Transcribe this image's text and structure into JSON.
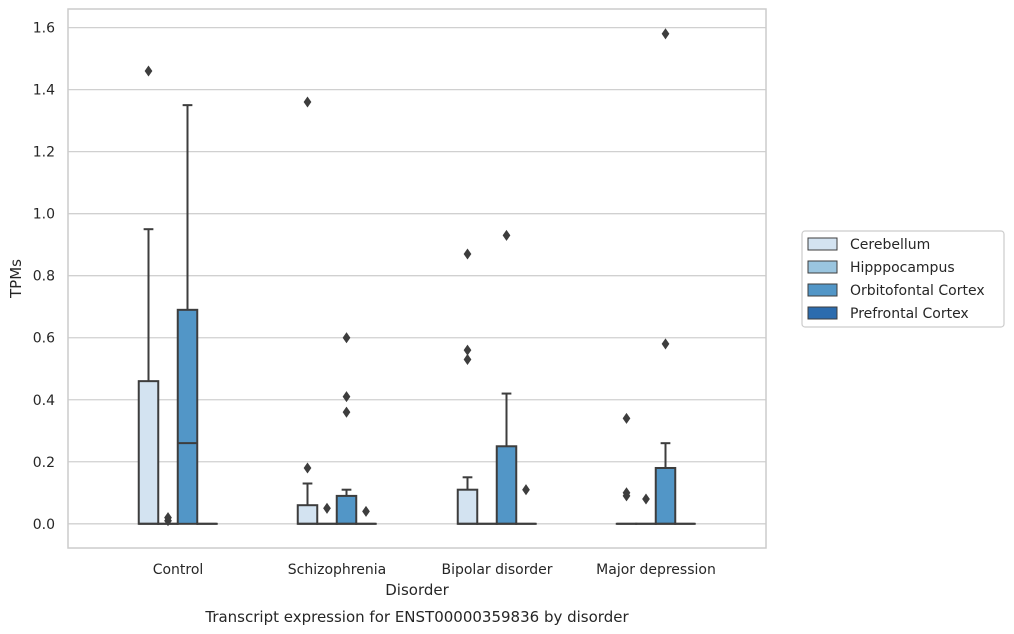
{
  "chart_data": {
    "type": "box",
    "caption": "Transcript expression for ENST00000359836 by disorder",
    "xlabel": "Disorder",
    "ylabel": "TPMs",
    "ylim": [
      -0.078,
      1.66
    ],
    "yticks": [
      "0.0",
      "0.2",
      "0.4",
      "0.6",
      "0.8",
      "1.0",
      "1.2",
      "1.4",
      "1.6"
    ],
    "ytick_values": [
      0.0,
      0.2,
      0.4,
      0.6,
      0.8,
      1.0,
      1.2,
      1.4,
      1.6
    ],
    "grid": true,
    "legend_position": "right",
    "categories": [
      "Control",
      "Schizophrenia",
      "Bipolar disorder",
      "Major depression"
    ],
    "series": [
      {
        "name": "Cerebellum",
        "color": "#d3e3f1",
        "boxes": [
          {
            "category": "Control",
            "q1": 0.0,
            "median": 0.0,
            "q3": 0.46,
            "whisker_low": 0.0,
            "whisker_high": 0.95,
            "outliers": [
              1.46
            ]
          },
          {
            "category": "Schizophrenia",
            "q1": 0.0,
            "median": 0.0,
            "q3": 0.06,
            "whisker_low": 0.0,
            "whisker_high": 0.13,
            "outliers": [
              0.18,
              1.36
            ]
          },
          {
            "category": "Bipolar disorder",
            "q1": 0.0,
            "median": 0.0,
            "q3": 0.11,
            "whisker_low": 0.0,
            "whisker_high": 0.15,
            "outliers": [
              0.53,
              0.56,
              0.87
            ]
          },
          {
            "category": "Major depression",
            "q1": 0.0,
            "median": 0.0,
            "q3": 0.0,
            "whisker_low": 0.0,
            "whisker_high": 0.0,
            "outliers": [
              0.09,
              0.1,
              0.34
            ]
          }
        ]
      },
      {
        "name": "Hipppocampus",
        "color": "#9ac5df",
        "boxes": [
          {
            "category": "Control",
            "q1": 0.0,
            "median": 0.0,
            "q3": 0.0,
            "whisker_low": 0.0,
            "whisker_high": 0.0,
            "outliers": [
              0.01,
              0.02
            ]
          },
          {
            "category": "Schizophrenia",
            "q1": 0.0,
            "median": 0.0,
            "q3": 0.0,
            "whisker_low": 0.0,
            "whisker_high": 0.0,
            "outliers": [
              0.05
            ]
          },
          {
            "category": "Bipolar disorder",
            "q1": 0.0,
            "median": 0.0,
            "q3": 0.0,
            "whisker_low": 0.0,
            "whisker_high": 0.0,
            "outliers": []
          },
          {
            "category": "Major depression",
            "q1": 0.0,
            "median": 0.0,
            "q3": 0.0,
            "whisker_low": 0.0,
            "whisker_high": 0.0,
            "outliers": [
              0.08
            ]
          }
        ]
      },
      {
        "name": "Orbitofontal Cortex",
        "color": "#5296c7",
        "boxes": [
          {
            "category": "Control",
            "q1": 0.0,
            "median": 0.26,
            "q3": 0.69,
            "whisker_low": 0.0,
            "whisker_high": 1.35,
            "outliers": []
          },
          {
            "category": "Schizophrenia",
            "q1": 0.0,
            "median": 0.0,
            "q3": 0.09,
            "whisker_low": 0.0,
            "whisker_high": 0.11,
            "outliers": [
              0.36,
              0.41,
              0.6
            ]
          },
          {
            "category": "Bipolar disorder",
            "q1": 0.0,
            "median": 0.0,
            "q3": 0.25,
            "whisker_low": 0.0,
            "whisker_high": 0.42,
            "outliers": [
              0.93
            ]
          },
          {
            "category": "Major depression",
            "q1": 0.0,
            "median": 0.0,
            "q3": 0.18,
            "whisker_low": 0.0,
            "whisker_high": 0.26,
            "outliers": [
              0.58,
              1.58
            ]
          }
        ]
      },
      {
        "name": "Prefrontal Cortex",
        "color": "#2c6cae",
        "boxes": [
          {
            "category": "Control",
            "q1": 0.0,
            "median": 0.0,
            "q3": 0.0,
            "whisker_low": 0.0,
            "whisker_high": 0.0,
            "outliers": []
          },
          {
            "category": "Schizophrenia",
            "q1": 0.0,
            "median": 0.0,
            "q3": 0.0,
            "whisker_low": 0.0,
            "whisker_high": 0.0,
            "outliers": [
              0.04
            ]
          },
          {
            "category": "Bipolar disorder",
            "q1": 0.0,
            "median": 0.0,
            "q3": 0.0,
            "whisker_low": 0.0,
            "whisker_high": 0.0,
            "outliers": [
              0.11
            ]
          },
          {
            "category": "Major depression",
            "q1": 0.0,
            "median": 0.0,
            "q3": 0.0,
            "whisker_low": 0.0,
            "whisker_high": 0.0,
            "outliers": []
          }
        ]
      }
    ]
  }
}
